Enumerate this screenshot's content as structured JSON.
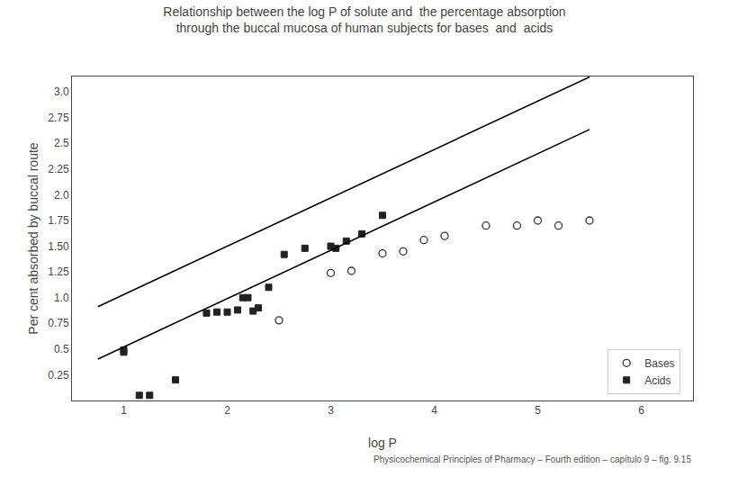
{
  "chart_data": {
    "type": "scatter",
    "title": "Relationship between the log P of solute and  the percentage absorption",
    "subtitle": "through the buccal mucosa of human subjects for bases  and  acids",
    "x_label": "log P",
    "y_label": "Per cent absorbed by buccal route",
    "annotations": [
      "Physicochemical Principles of Pharmacy – Fourth edition – capítulo 9 – fig. 9.15"
    ],
    "xlim": [
      0.5,
      6.5
    ],
    "ylim": [
      0.0,
      3.15
    ],
    "xticks": [
      1,
      2,
      3,
      4,
      5,
      6
    ],
    "yticks": [
      0.25,
      0.5,
      0.75,
      {
        "value": 1.0,
        "label": "1.0"
      },
      1.25,
      {
        "value": 1.5,
        "label": "1.50"
      },
      1.75,
      {
        "value": 2.0,
        "label": "2.0"
      },
      2.25,
      2.5,
      2.75,
      {
        "value": 3.0,
        "label": "3.0"
      }
    ],
    "grid": false,
    "legend": "lower right",
    "series": [
      {
        "name": "Bases",
        "type": "scatter",
        "marker": "circle-open",
        "color": "#333333",
        "x": [
          2.5,
          3.0,
          3.2,
          3.5,
          3.7,
          3.9,
          4.1,
          4.5,
          4.8,
          5.0,
          5.2,
          5.5
        ],
        "values": [
          0.78,
          1.24,
          1.26,
          1.43,
          1.45,
          1.56,
          1.6,
          1.7,
          1.7,
          1.75,
          1.7,
          1.75
        ]
      },
      {
        "name": "Acids",
        "type": "scatter",
        "marker": "square",
        "color": "#222222",
        "x": [
          1.0,
          1.0,
          1.5,
          1.8,
          1.9,
          2.0,
          2.1,
          2.15,
          2.2,
          2.25,
          2.3,
          2.4,
          2.55,
          2.75,
          3.0,
          3.05,
          3.15,
          3.3,
          3.5,
          1.15,
          1.25
        ],
        "values": [
          0.49,
          0.47,
          0.2,
          0.85,
          0.86,
          0.86,
          0.88,
          1.0,
          1.0,
          0.87,
          0.9,
          1.1,
          1.42,
          1.48,
          1.5,
          1.48,
          1.55,
          1.62,
          1.8,
          0.05,
          0.05
        ]
      },
      {
        "type": "line",
        "line_style": "solid",
        "color": "#000000",
        "x": [
          0.75,
          5.5
        ],
        "values": [
          0.9125,
          3.145
        ]
      },
      {
        "type": "line",
        "line_style": "solid",
        "color": "#000000",
        "x": [
          0.75,
          5.5
        ],
        "values": [
          0.4025,
          2.635
        ]
      }
    ]
  }
}
